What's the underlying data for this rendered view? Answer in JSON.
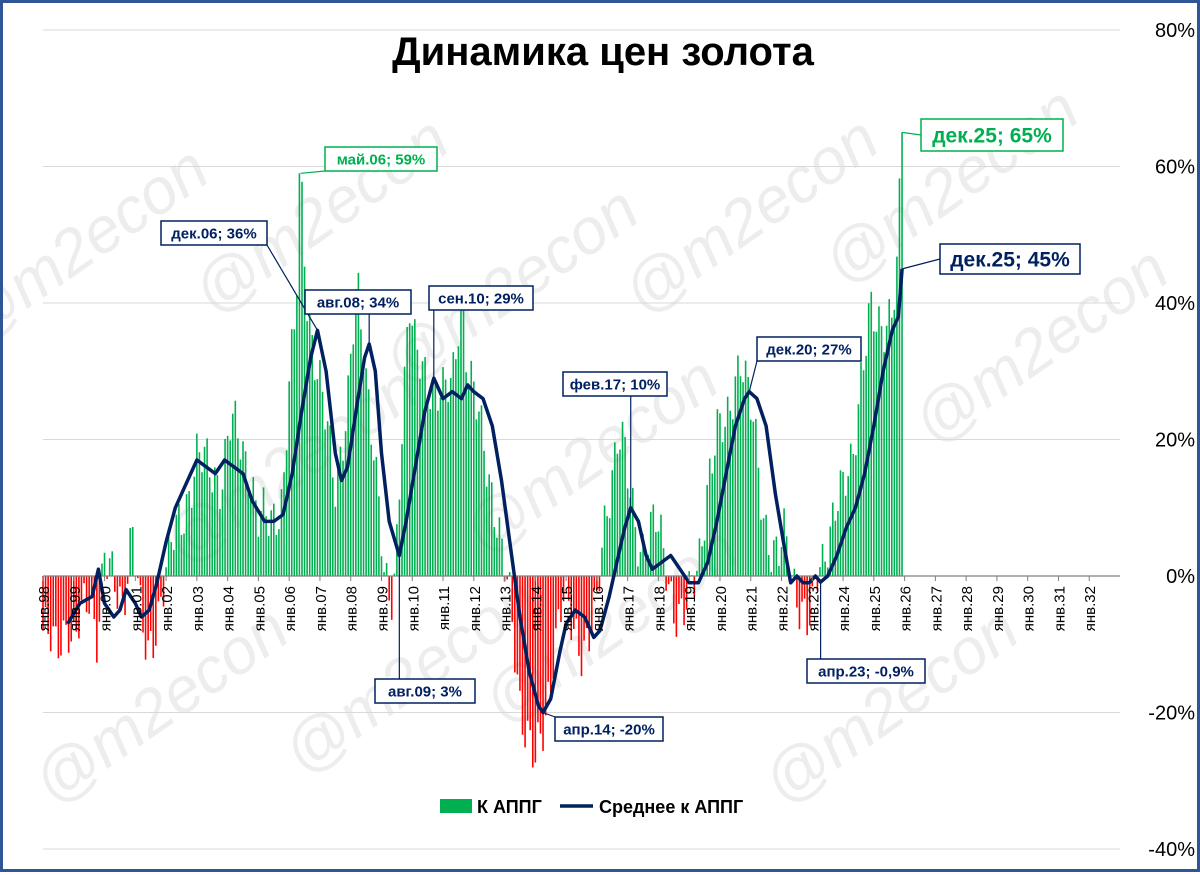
{
  "colors": {
    "positive": "#00b050",
    "negative": "#ff0000",
    "average": "#002060",
    "border": "#2f5597",
    "grid": "#d9d9d9"
  },
  "watermark": "@m2econ",
  "chart_data": {
    "type": "bar",
    "title": "Динамика цен золота",
    "x_range": [
      1998.0,
      2033.0
    ],
    "ylim": [
      -40,
      80
    ],
    "y_ticks": [
      80,
      60,
      40,
      20,
      0,
      -20,
      -40
    ],
    "y_tick_labels": [
      "80%",
      "60%",
      "40%",
      "20%",
      "0%",
      "-20%",
      "-40%"
    ],
    "x_ticks": [
      "янв.98",
      "янв.99",
      "янв.00",
      "янв.01",
      "янв.02",
      "янв.03",
      "янв.04",
      "янв.05",
      "янв.06",
      "янв.07",
      "янв.08",
      "янв.09",
      "янв.10",
      "янв.11",
      "янв.12",
      "янв.13",
      "янв.14",
      "янв.15",
      "янв.16",
      "янв.17",
      "янв.18",
      "янв.19",
      "янв.20",
      "янв.21",
      "янв.22",
      "янв.23",
      "янв.24",
      "янв.25",
      "янв.26",
      "янв.27",
      "янв.28",
      "янв.29",
      "янв.30",
      "янв.31",
      "янв.32"
    ],
    "grid": true,
    "legend_position": "bottom",
    "series": [
      {
        "name": "К АППГ",
        "kind": "bar",
        "keypoints": [
          [
            1998.0,
            -8
          ],
          [
            1998.4,
            -11
          ],
          [
            1998.8,
            -6
          ],
          [
            1999.0,
            -10
          ],
          [
            1999.5,
            -3
          ],
          [
            1999.75,
            -8
          ],
          [
            2000.0,
            3
          ],
          [
            2000.3,
            -2
          ],
          [
            2000.6,
            -4
          ],
          [
            2000.9,
            8
          ],
          [
            2001.2,
            -8
          ],
          [
            2001.4,
            -12
          ],
          [
            2001.7,
            -6
          ],
          [
            2002.0,
            1
          ],
          [
            2002.3,
            6
          ],
          [
            2002.6,
            10
          ],
          [
            2003.0,
            17
          ],
          [
            2003.4,
            16
          ],
          [
            2003.8,
            14
          ],
          [
            2004.1,
            22
          ],
          [
            2004.4,
            20
          ],
          [
            2004.7,
            16
          ],
          [
            2005.0,
            8
          ],
          [
            2005.4,
            8
          ],
          [
            2005.8,
            12
          ],
          [
            2006.0,
            28
          ],
          [
            2006.2,
            36
          ],
          [
            2006.37,
            59
          ],
          [
            2006.6,
            40
          ],
          [
            2006.9,
            30
          ],
          [
            2007.2,
            22
          ],
          [
            2007.5,
            14
          ],
          [
            2007.9,
            25
          ],
          [
            2008.2,
            42
          ],
          [
            2008.5,
            30
          ],
          [
            2008.75,
            20
          ],
          [
            2008.95,
            8
          ],
          [
            2009.1,
            -2
          ],
          [
            2009.3,
            -5
          ],
          [
            2009.45,
            1
          ],
          [
            2009.65,
            22
          ],
          [
            2009.9,
            40
          ],
          [
            2010.1,
            32
          ],
          [
            2010.4,
            30
          ],
          [
            2010.7,
            28
          ],
          [
            2011.0,
            26
          ],
          [
            2011.3,
            28
          ],
          [
            2011.6,
            43
          ],
          [
            2011.8,
            30
          ],
          [
            2012.0,
            26
          ],
          [
            2012.3,
            20
          ],
          [
            2012.7,
            10
          ],
          [
            2012.95,
            2
          ],
          [
            2013.2,
            -5
          ],
          [
            2013.5,
            -18
          ],
          [
            2013.8,
            -24
          ],
          [
            2014.0,
            -28
          ],
          [
            2014.3,
            -22
          ],
          [
            2014.6,
            -10
          ],
          [
            2014.9,
            -3
          ],
          [
            2015.2,
            -8
          ],
          [
            2015.5,
            -10
          ],
          [
            2015.8,
            -8
          ],
          [
            2016.0,
            -5
          ],
          [
            2016.2,
            5
          ],
          [
            2016.5,
            16
          ],
          [
            2016.7,
            22
          ],
          [
            2016.9,
            18
          ],
          [
            2017.1,
            10
          ],
          [
            2017.4,
            4
          ],
          [
            2017.7,
            7
          ],
          [
            2017.9,
            8
          ],
          [
            2018.2,
            2
          ],
          [
            2018.5,
            -4
          ],
          [
            2018.8,
            -6
          ],
          [
            2019.0,
            -4
          ],
          [
            2019.3,
            2
          ],
          [
            2019.6,
            14
          ],
          [
            2019.9,
            20
          ],
          [
            2020.2,
            22
          ],
          [
            2020.5,
            30
          ],
          [
            2020.7,
            32
          ],
          [
            2020.9,
            26
          ],
          [
            2021.1,
            22
          ],
          [
            2021.4,
            10
          ],
          [
            2021.7,
            3
          ],
          [
            2021.9,
            2
          ],
          [
            2022.1,
            6
          ],
          [
            2022.3,
            2
          ],
          [
            2022.6,
            -4
          ],
          [
            2022.85,
            -8
          ],
          [
            2023.0,
            -6
          ],
          [
            2023.2,
            2
          ],
          [
            2023.35,
            3
          ],
          [
            2023.5,
            6
          ],
          [
            2023.8,
            10
          ],
          [
            2024.0,
            12
          ],
          [
            2024.3,
            18
          ],
          [
            2024.6,
            30
          ],
          [
            2024.9,
            38
          ],
          [
            2025.1,
            36
          ],
          [
            2025.4,
            38
          ],
          [
            2025.6,
            40
          ],
          [
            2025.75,
            44
          ],
          [
            2025.92,
            65
          ]
        ]
      },
      {
        "name": "Среднее к АППГ",
        "kind": "line",
        "points": [
          [
            1998.8,
            -7
          ],
          [
            1999.2,
            -4
          ],
          [
            1999.6,
            -3
          ],
          [
            1999.8,
            1
          ],
          [
            2000.0,
            -4
          ],
          [
            2000.3,
            -6
          ],
          [
            2000.5,
            -5
          ],
          [
            2000.7,
            -2
          ],
          [
            2001.0,
            -4
          ],
          [
            2001.2,
            -6
          ],
          [
            2001.45,
            -5
          ],
          [
            2001.7,
            -1
          ],
          [
            2002.0,
            5
          ],
          [
            2002.3,
            10
          ],
          [
            2002.6,
            13
          ],
          [
            2003.0,
            17
          ],
          [
            2003.3,
            16
          ],
          [
            2003.6,
            15
          ],
          [
            2003.9,
            17
          ],
          [
            2004.2,
            16
          ],
          [
            2004.5,
            15
          ],
          [
            2004.8,
            11
          ],
          [
            2005.2,
            8
          ],
          [
            2005.5,
            8
          ],
          [
            2005.8,
            9
          ],
          [
            2006.1,
            15
          ],
          [
            2006.4,
            24
          ],
          [
            2006.7,
            32
          ],
          [
            2006.92,
            36
          ],
          [
            2007.2,
            30
          ],
          [
            2007.5,
            18
          ],
          [
            2007.7,
            14
          ],
          [
            2007.9,
            16
          ],
          [
            2008.2,
            25
          ],
          [
            2008.45,
            32
          ],
          [
            2008.6,
            34
          ],
          [
            2008.8,
            30
          ],
          [
            2009.0,
            18
          ],
          [
            2009.25,
            8
          ],
          [
            2009.58,
            3
          ],
          [
            2009.8,
            8
          ],
          [
            2010.1,
            16
          ],
          [
            2010.4,
            24
          ],
          [
            2010.7,
            29
          ],
          [
            2011.0,
            26
          ],
          [
            2011.3,
            27
          ],
          [
            2011.6,
            26
          ],
          [
            2011.8,
            28
          ],
          [
            2012.0,
            27
          ],
          [
            2012.3,
            26
          ],
          [
            2012.6,
            22
          ],
          [
            2012.9,
            14
          ],
          [
            2013.2,
            4
          ],
          [
            2013.5,
            -6
          ],
          [
            2013.8,
            -14
          ],
          [
            2014.1,
            -19
          ],
          [
            2014.25,
            -20
          ],
          [
            2014.5,
            -18
          ],
          [
            2014.8,
            -11
          ],
          [
            2015.0,
            -7
          ],
          [
            2015.3,
            -5
          ],
          [
            2015.6,
            -6
          ],
          [
            2015.9,
            -9
          ],
          [
            2016.1,
            -8
          ],
          [
            2016.4,
            -3
          ],
          [
            2016.7,
            3
          ],
          [
            2016.9,
            7
          ],
          [
            2017.1,
            10
          ],
          [
            2017.35,
            8
          ],
          [
            2017.6,
            3
          ],
          [
            2017.8,
            1
          ],
          [
            2018.1,
            2
          ],
          [
            2018.4,
            3
          ],
          [
            2018.7,
            1
          ],
          [
            2019.0,
            -1
          ],
          [
            2019.3,
            -1
          ],
          [
            2019.6,
            2
          ],
          [
            2019.9,
            8
          ],
          [
            2020.2,
            15
          ],
          [
            2020.5,
            22
          ],
          [
            2020.8,
            26
          ],
          [
            2020.95,
            27
          ],
          [
            2021.2,
            26
          ],
          [
            2021.5,
            22
          ],
          [
            2021.8,
            12
          ],
          [
            2022.1,
            4
          ],
          [
            2022.3,
            -1
          ],
          [
            2022.5,
            0
          ],
          [
            2022.7,
            -1
          ],
          [
            2022.9,
            -1
          ],
          [
            2023.1,
            0
          ],
          [
            2023.27,
            -0.9
          ],
          [
            2023.5,
            0
          ],
          [
            2023.8,
            3
          ],
          [
            2024.1,
            7
          ],
          [
            2024.4,
            10
          ],
          [
            2024.7,
            15
          ],
          [
            2025.0,
            22
          ],
          [
            2025.3,
            30
          ],
          [
            2025.6,
            36
          ],
          [
            2025.8,
            38
          ],
          [
            2025.92,
            45
          ]
        ]
      }
    ],
    "annotations": [
      {
        "text": "май.06; 59%",
        "series": "К АППГ",
        "x": 2006.37,
        "y": 59
      },
      {
        "text": "дек.25; 65%",
        "series": "К АППГ",
        "x": 2025.92,
        "y": 65
      },
      {
        "text": "дек.06; 36%",
        "series": "Среднее к АППГ",
        "x": 2006.92,
        "y": 36
      },
      {
        "text": "авг.08; 34%",
        "series": "Среднее к АППГ",
        "x": 2008.6,
        "y": 34
      },
      {
        "text": "сен.10; 29%",
        "series": "Среднее к АППГ",
        "x": 2010.7,
        "y": 29
      },
      {
        "text": "авг.09; 3%",
        "series": "Среднее к АППГ",
        "x": 2009.58,
        "y": 3
      },
      {
        "text": "апр.14; -20%",
        "series": "Среднее к АППГ",
        "x": 2014.25,
        "y": -20
      },
      {
        "text": "фев.17; 10%",
        "series": "Среднее к АППГ",
        "x": 2017.1,
        "y": 10
      },
      {
        "text": "дек.20; 27%",
        "series": "Среднее к АППГ",
        "x": 2020.95,
        "y": 27
      },
      {
        "text": "апр.23; -0,9%",
        "series": "Среднее к АППГ",
        "x": 2023.27,
        "y": -0.9
      },
      {
        "text": "дек.25; 45%",
        "series": "Среднее к АППГ",
        "x": 2025.92,
        "y": 45
      }
    ]
  }
}
